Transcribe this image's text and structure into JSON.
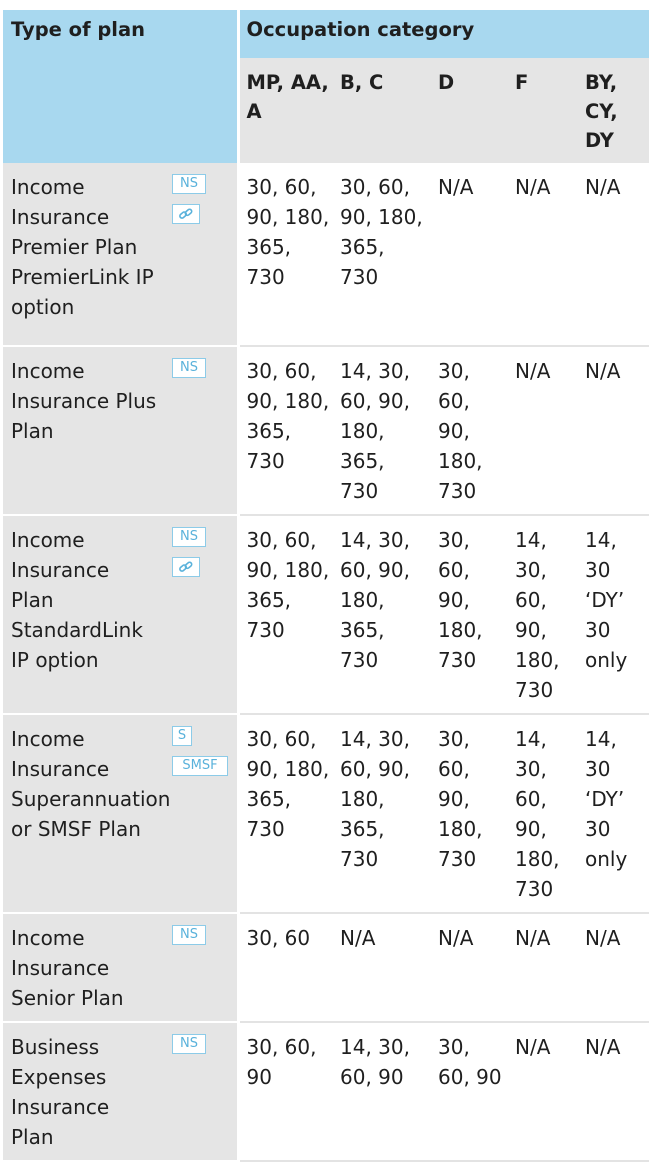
{
  "header": {
    "type_of_plan": "Type of plan",
    "occupation_category": "Occupation category",
    "columns": [
      [
        "MP, AA,",
        "A"
      ],
      [
        "B, C"
      ],
      [
        "D"
      ],
      [
        "F"
      ],
      [
        "BY,",
        "CY,",
        "DY"
      ]
    ]
  },
  "icons": {
    "ns": "NS",
    "s": "S",
    "smsf": "SMSF",
    "link": "link-icon"
  },
  "colors": {
    "header_blue": "#a8d8ef",
    "row_grey": "#e5e5e5",
    "badge_blue": "#5ab2db"
  },
  "rows": [
    {
      "plan": [
        "Income",
        "Insurance",
        "Premier Plan",
        "PremierLink IP",
        "option"
      ],
      "badges": [
        "ns",
        "link"
      ],
      "values": [
        [
          "30, 60,",
          "90, 180,",
          "365,",
          "730"
        ],
        [
          "30, 60,",
          "90, 180,",
          "365,",
          "730"
        ],
        [
          "N/A"
        ],
        [
          "N/A"
        ],
        [
          "N/A"
        ]
      ]
    },
    {
      "plan": [
        "Income",
        "Insurance Plus",
        "Plan"
      ],
      "badges": [
        "ns"
      ],
      "values": [
        [
          "30, 60,",
          "90, 180,",
          "365,",
          "730"
        ],
        [
          "14, 30,",
          "60, 90,",
          "180,",
          "365,",
          "730"
        ],
        [
          "30,",
          "60,",
          "90,",
          "180,",
          "730"
        ],
        [
          "N/A"
        ],
        [
          "N/A"
        ]
      ]
    },
    {
      "plan": [
        "Income",
        "Insurance",
        "Plan",
        "StandardLink",
        "IP option"
      ],
      "badges": [
        "ns",
        "link"
      ],
      "values": [
        [
          "30, 60,",
          "90, 180,",
          "365,",
          "730"
        ],
        [
          "14, 30,",
          "60, 90,",
          "180,",
          "365,",
          "730"
        ],
        [
          "30,",
          "60,",
          "90,",
          "180,",
          "730"
        ],
        [
          "14,",
          "30,",
          "60,",
          "90,",
          "180,",
          "730"
        ],
        [
          "14,",
          "30",
          "‘DY’",
          "30",
          "only"
        ]
      ]
    },
    {
      "plan": [
        "Income",
        "Insurance",
        "Superannuation",
        "or SMSF Plan"
      ],
      "badges": [
        "s",
        "smsf"
      ],
      "values": [
        [
          "30, 60,",
          "90, 180,",
          "365,",
          "730"
        ],
        [
          "14, 30,",
          "60, 90,",
          "180,",
          "365,",
          "730"
        ],
        [
          "30,",
          "60,",
          "90,",
          "180,",
          "730"
        ],
        [
          "14,",
          "30,",
          "60,",
          "90,",
          "180,",
          "730"
        ],
        [
          "14,",
          "30",
          "‘DY’",
          "30",
          "only"
        ]
      ]
    },
    {
      "plan": [
        "Income",
        "Insurance",
        "Senior Plan"
      ],
      "badges": [
        "ns"
      ],
      "values": [
        [
          "30, 60"
        ],
        [
          "N/A"
        ],
        [
          "N/A"
        ],
        [
          "N/A"
        ],
        [
          "N/A"
        ]
      ]
    },
    {
      "plan": [
        "Business",
        "Expenses",
        "Insurance",
        "Plan"
      ],
      "badges": [
        "ns"
      ],
      "values": [
        [
          "30, 60,",
          "90"
        ],
        [
          "14, 30,",
          "60, 90"
        ],
        [
          "30,",
          "60, 90"
        ],
        [
          "N/A"
        ],
        [
          "N/A"
        ]
      ]
    }
  ]
}
